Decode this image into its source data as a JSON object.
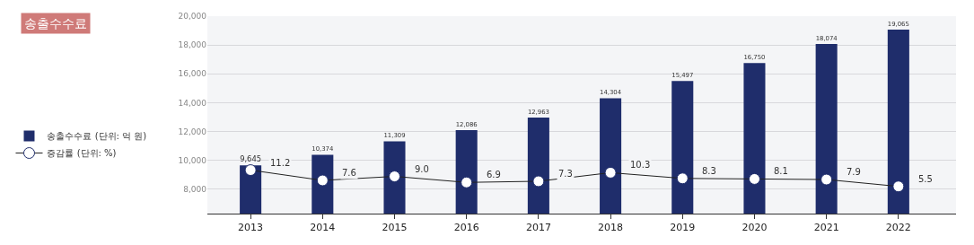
{
  "chart_data": {
    "type": "bar",
    "title": "송출수수료",
    "categories": [
      "2013",
      "2014",
      "2015",
      "2016",
      "2017",
      "2018",
      "2019",
      "2020",
      "2021",
      "2022"
    ],
    "series": [
      {
        "name": "송출수수료 (단위: 억 원)",
        "color": "#1f2d6b",
        "values": [
          9645,
          10374,
          11309,
          12086,
          12963,
          14304,
          15497,
          16750,
          18074,
          19065
        ],
        "value_labels": [
          "9,645",
          "10,374",
          "11,309",
          "12,086",
          "12,963",
          "14,304",
          "15,497",
          "16,750",
          "18,074",
          "19,065"
        ]
      },
      {
        "name": "증감률 (단위: %)",
        "type": "line",
        "axis": "y2",
        "color": "#ffffff",
        "marker": "circle",
        "values": [
          11.2,
          7.6,
          9.0,
          6.9,
          7.3,
          10.3,
          8.3,
          8.1,
          7.9,
          5.5
        ],
        "value_labels": [
          "11.2",
          "7.6",
          "9.0",
          "6.9",
          "7.3",
          "10.3",
          "8.3",
          "8.1",
          "7.9",
          "5.5"
        ]
      }
    ],
    "ylim": [
      6300,
      20000
    ],
    "yticks": [
      {
        "value": 8000,
        "label": "8,000"
      },
      {
        "value": 10000,
        "label": "10,000"
      },
      {
        "value": 12000,
        "label": "12,000"
      },
      {
        "value": 14000,
        "label": "14,000"
      },
      {
        "value": 16000,
        "label": "16,000"
      },
      {
        "value": 18000,
        "label": "18,000"
      },
      {
        "value": 20000,
        "label": "20,000"
      }
    ],
    "y2lim": [
      -4,
      65
    ],
    "tick_labels": "xy",
    "grid": "y",
    "legend": "left"
  }
}
